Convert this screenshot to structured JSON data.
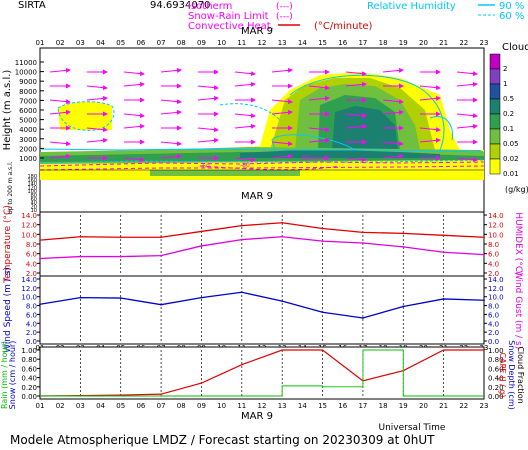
{
  "header": {
    "station": "SIRTA",
    "station_value": "94.6934070",
    "legend_left": [
      {
        "label": "Isotherm",
        "suffix": "(---)",
        "color": "#e000e0"
      },
      {
        "label": "Snow-Rain Limit",
        "suffix": "(---)",
        "color": "#ff00ff"
      },
      {
        "label": "Convective Heat.",
        "suffix": "(°C/minute)",
        "color": "#e00000"
      }
    ],
    "legend_right": [
      {
        "label": "Relative Humidity",
        "value": "90 %",
        "color": "#00c8ff"
      },
      {
        "label": "",
        "value": "60 %",
        "color": "#00c8ff"
      }
    ]
  },
  "hours": [
    "01",
    "02",
    "03",
    "04",
    "05",
    "06",
    "07",
    "08",
    "09",
    "10",
    "11",
    "12",
    "13",
    "14",
    "15",
    "16",
    "17",
    "18",
    "19",
    "20",
    "21",
    "22",
    "23"
  ],
  "date_label": "MAR  9",
  "footer": "Modele Atmospherique LMDZ / Forecast starting on 20230309 at 0hUT",
  "chart_data": [
    {
      "type": "heatmap",
      "title": "Clouds",
      "xlabel": "",
      "ylabel": "Height (m a.s.l.)",
      "ylabel_small": "Up to 200 m a.s.l.",
      "y_ticks_upper": [
        11000,
        10000,
        9000,
        8000,
        7000,
        6000,
        5000,
        4000,
        3000,
        2000,
        1000
      ],
      "y_ticks_lower": [
        180,
        160,
        140,
        120,
        100,
        80,
        60,
        40,
        20,
        10
      ],
      "colorbar": {
        "title": "Clouds",
        "unit": "(g/kg)",
        "levels": [
          "2",
          "1",
          "0.5",
          "0.2",
          "0.1",
          "0.05",
          "0.02",
          "0.01"
        ],
        "colors": [
          "#c000c0",
          "#8040c0",
          "#2050a0",
          "#1c8070",
          "#30a050",
          "#70c040",
          "#b0d000",
          "#ffff00"
        ]
      },
      "isotherm_labels": [
        "-60",
        "-80",
        "-60"
      ]
    },
    {
      "type": "line",
      "title": "",
      "ylabel": "Temperature (°C)",
      "ylabel_right": "HUMIDEX (°C)",
      "ylim": [
        2,
        14
      ],
      "yticks": [
        2,
        4,
        6,
        8,
        10,
        12,
        14
      ],
      "x": [
        1,
        3,
        5,
        7,
        9,
        11,
        13,
        15,
        17,
        19,
        21,
        23
      ],
      "series": [
        {
          "name": "Temperature",
          "color": "#e00000",
          "values": [
            8.8,
            9.5,
            9.4,
            9.4,
            10.6,
            11.8,
            12.4,
            11.2,
            10.4,
            10.2,
            9.8,
            9.4
          ]
        },
        {
          "name": "HUMIDEX",
          "color": "#e000e0",
          "values": [
            5.0,
            5.4,
            5.4,
            5.6,
            7.6,
            8.9,
            9.5,
            8.6,
            8.2,
            7.4,
            6.3,
            5.8
          ]
        }
      ]
    },
    {
      "type": "line",
      "title": "",
      "ylabel": "Wind Speed (m / s)",
      "ylabel_right": "Wind Gust (m / s)",
      "ylim": [
        0,
        14
      ],
      "yticks": [
        0,
        2,
        4,
        6,
        8,
        10,
        12,
        14
      ],
      "x": [
        1,
        3,
        5,
        7,
        9,
        11,
        13,
        15,
        17,
        19,
        21,
        23
      ],
      "series": [
        {
          "name": "Wind Speed",
          "color": "#0000d0",
          "values": [
            8.3,
            9.8,
            9.7,
            8.2,
            9.8,
            11.0,
            9.0,
            6.5,
            5.2,
            7.8,
            9.5,
            9.2
          ]
        }
      ]
    },
    {
      "type": "line",
      "title": "",
      "xlabel": "Universal Time",
      "ylabel": "Rain (mm / hour)",
      "ylabel2": "Snow (cm / hour)",
      "ylabel_right": "CAPE (J / g)",
      "ylabel_right2": "Snow Depth (cm)",
      "ylabel_right3": "Cloud Fraction",
      "ylim": [
        0,
        1.0
      ],
      "yticks": [
        0.0,
        0.2,
        0.4,
        0.6,
        0.8,
        1.0
      ],
      "x": [
        1,
        3,
        5,
        7,
        9,
        11,
        13,
        15,
        17,
        19,
        21,
        23
      ],
      "series": [
        {
          "name": "CAPE",
          "color": "#e00000",
          "values": [
            0.0,
            0.01,
            0.02,
            0.04,
            0.28,
            0.68,
            1.05,
            1.1,
            0.33,
            0.55,
            1.1,
            1.1
          ]
        },
        {
          "name": "Rain",
          "color": "#00c000",
          "values": [
            0.0,
            0.0,
            0.0,
            0.0,
            0.0,
            0.0,
            0.22,
            0.2,
            1.0,
            0.0,
            0.0,
            0.0
          ]
        }
      ]
    }
  ]
}
